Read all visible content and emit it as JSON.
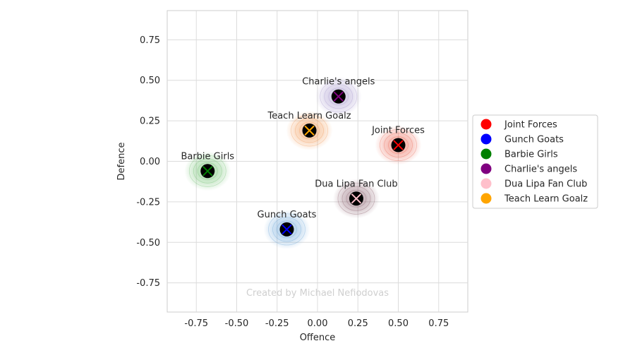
{
  "chart_data": {
    "type": "scatter",
    "xlabel": "Offence",
    "ylabel": "Defence",
    "xlim": [
      -0.93,
      0.93
    ],
    "ylim": [
      -0.93,
      0.93
    ],
    "xticks": [
      "-0.75",
      "-0.50",
      "-0.25",
      "0.00",
      "0.25",
      "0.50",
      "0.75"
    ],
    "yticks": [
      "-0.75",
      "-0.50",
      "-0.25",
      "0.00",
      "0.25",
      "0.50",
      "0.75"
    ],
    "grid": true,
    "legend_position": "right",
    "watermark": "Created by Michael Nefiodovas",
    "series": [
      {
        "name": "Joint Forces",
        "color": "#ff0000",
        "density_color": "#e8503a",
        "x": 0.5,
        "y": 0.1
      },
      {
        "name": "Gunch Goats",
        "color": "#0000ff",
        "density_color": "#5a9bd4",
        "x": -0.19,
        "y": -0.42
      },
      {
        "name": "Barbie Girls",
        "color": "#008000",
        "density_color": "#5cb85c",
        "x": -0.68,
        "y": -0.06
      },
      {
        "name": "Charlie's angels",
        "color": "#800080",
        "density_color": "#9b8ac7",
        "x": 0.13,
        "y": 0.4
      },
      {
        "name": "Dua Lipa Fan Club",
        "color": "#ffc0cb",
        "density_color": "#7a4a5a",
        "x": 0.24,
        "y": -0.23
      },
      {
        "name": "Teach Learn Goalz",
        "color": "#ffa500",
        "density_color": "#f08a3c",
        "x": -0.05,
        "y": 0.19
      }
    ]
  }
}
